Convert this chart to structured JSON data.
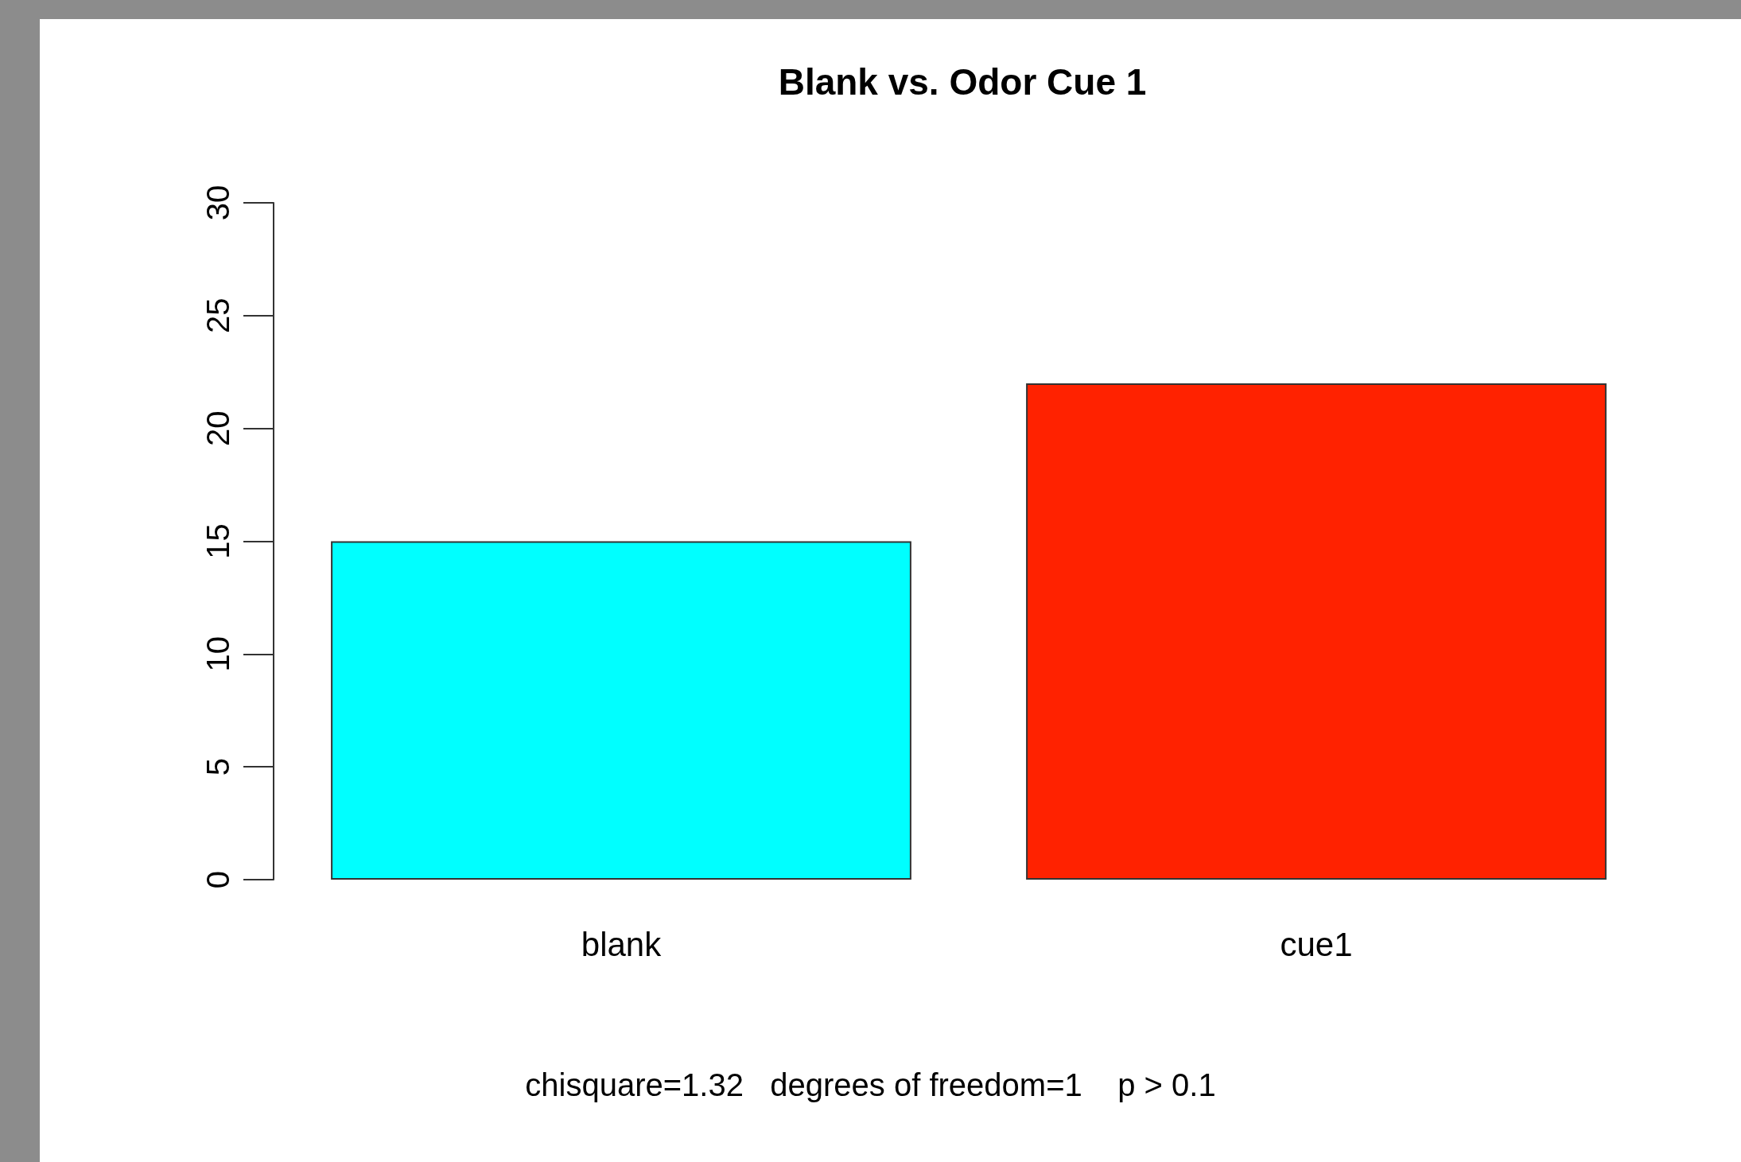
{
  "chart_data": {
    "type": "bar",
    "title": "Blank vs. Odor Cue 1",
    "categories": [
      "blank",
      "cue1"
    ],
    "values": [
      15,
      22
    ],
    "colors": [
      "#00ffff",
      "#ff2200"
    ],
    "ylim": [
      0,
      30
    ],
    "yticks": [
      0,
      5,
      10,
      15,
      20,
      25,
      30
    ],
    "grid": false,
    "annotations": [
      "chisquare=1.32   degrees of freedom=1    p > 0.1"
    ]
  }
}
